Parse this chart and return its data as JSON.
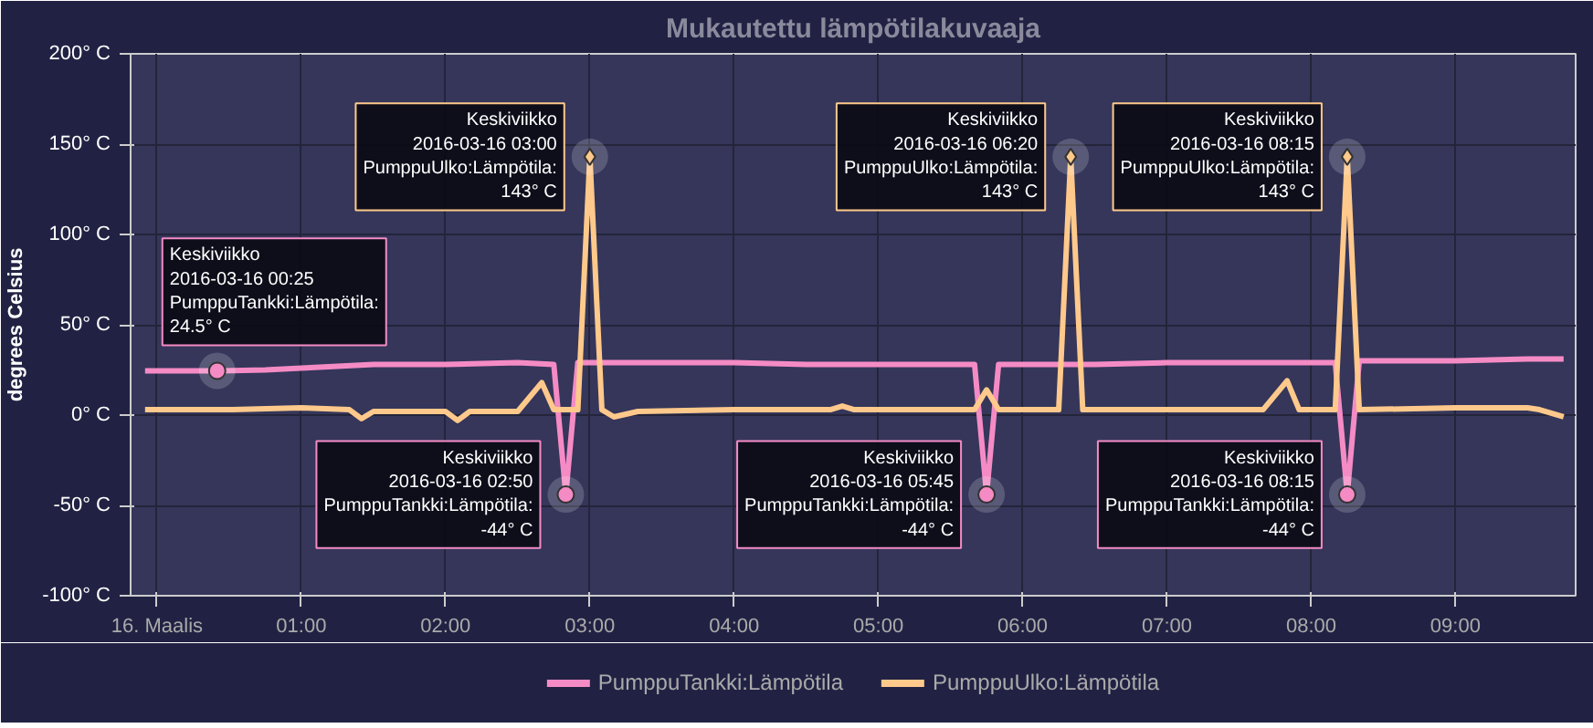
{
  "chart_data": {
    "type": "line",
    "title": "Mukautettu lämpötilakuvaaja",
    "ylabel": "degrees Celsius",
    "xlim": [
      "2016-03-15T23:49",
      "2016-03-16T09:50"
    ],
    "ylim": [
      -100,
      200
    ],
    "xticks": [
      {
        "value": "2016-03-16T00:00",
        "label": "16. Maalis"
      },
      {
        "value": "2016-03-16T01:00",
        "label": "01:00"
      },
      {
        "value": "2016-03-16T02:00",
        "label": "02:00"
      },
      {
        "value": "2016-03-16T03:00",
        "label": "03:00"
      },
      {
        "value": "2016-03-16T04:00",
        "label": "04:00"
      },
      {
        "value": "2016-03-16T05:00",
        "label": "05:00"
      },
      {
        "value": "2016-03-16T06:00",
        "label": "06:00"
      },
      {
        "value": "2016-03-16T07:00",
        "label": "07:00"
      },
      {
        "value": "2016-03-16T08:00",
        "label": "08:00"
      },
      {
        "value": "2016-03-16T09:00",
        "label": "09:00"
      }
    ],
    "yticks": [
      {
        "value": -100,
        "label": "-100° C"
      },
      {
        "value": -50,
        "label": "-50° C"
      },
      {
        "value": 0,
        "label": "0° C"
      },
      {
        "value": 50,
        "label": "50° C"
      },
      {
        "value": 100,
        "label": "100° C"
      },
      {
        "value": 150,
        "label": "150° C"
      },
      {
        "value": 200,
        "label": "200° C"
      }
    ],
    "grid": true,
    "legend": "bottom",
    "line_style": "solid",
    "series": [
      {
        "name": "PumppuTankki:Lämpötila",
        "color": "#f58bc5",
        "x": [
          "2016-03-15T23:55",
          "2016-03-16T00:25",
          "2016-03-16T00:45",
          "2016-03-16T01:00",
          "2016-03-16T01:30",
          "2016-03-16T02:00",
          "2016-03-16T02:30",
          "2016-03-16T02:45",
          "2016-03-16T02:50",
          "2016-03-16T02:55",
          "2016-03-16T03:30",
          "2016-03-16T04:00",
          "2016-03-16T04:30",
          "2016-03-16T05:00",
          "2016-03-16T05:30",
          "2016-03-16T05:40",
          "2016-03-16T05:45",
          "2016-03-16T05:50",
          "2016-03-16T06:30",
          "2016-03-16T07:00",
          "2016-03-16T07:30",
          "2016-03-16T08:00",
          "2016-03-16T08:10",
          "2016-03-16T08:15",
          "2016-03-16T08:20",
          "2016-03-16T09:00",
          "2016-03-16T09:30",
          "2016-03-16T09:45"
        ],
        "values": [
          24.5,
          24.5,
          25,
          26,
          28,
          28,
          29,
          28,
          -44,
          29,
          29,
          29,
          28,
          28,
          28,
          28,
          -44,
          28,
          28,
          29,
          29,
          29,
          29,
          -44,
          30,
          30,
          31,
          31
        ]
      },
      {
        "name": "PumppuUlko:Lämpötila",
        "color": "#ffc98b",
        "x": [
          "2016-03-15T23:55",
          "2016-03-16T00:30",
          "2016-03-16T01:00",
          "2016-03-16T01:20",
          "2016-03-16T01:25",
          "2016-03-16T01:30",
          "2016-03-16T02:00",
          "2016-03-16T02:05",
          "2016-03-16T02:10",
          "2016-03-16T02:30",
          "2016-03-16T02:40",
          "2016-03-16T02:45",
          "2016-03-16T02:55",
          "2016-03-16T03:00",
          "2016-03-16T03:05",
          "2016-03-16T03:10",
          "2016-03-16T03:20",
          "2016-03-16T04:00",
          "2016-03-16T04:40",
          "2016-03-16T04:45",
          "2016-03-16T04:50",
          "2016-03-16T05:30",
          "2016-03-16T05:40",
          "2016-03-16T05:45",
          "2016-03-16T05:50",
          "2016-03-16T06:15",
          "2016-03-16T06:20",
          "2016-03-16T06:25",
          "2016-03-16T07:00",
          "2016-03-16T07:40",
          "2016-03-16T07:50",
          "2016-03-16T07:55",
          "2016-03-16T08:10",
          "2016-03-16T08:15",
          "2016-03-16T08:20",
          "2016-03-16T09:00",
          "2016-03-16T09:30",
          "2016-03-16T09:35",
          "2016-03-16T09:45"
        ],
        "values": [
          3,
          3,
          4,
          3,
          -2,
          2,
          2,
          -3,
          2,
          2,
          18,
          3,
          3,
          143,
          3,
          -1,
          2,
          3,
          3,
          5,
          3,
          3,
          3,
          14,
          3,
          3,
          143,
          3,
          3,
          3,
          19,
          3,
          3,
          143,
          3,
          4,
          4,
          3,
          -1
        ]
      }
    ],
    "annotations": [
      {
        "text": "Keskiviikko\n2016-03-16 00:25\nPumppuTankki:Lämpötila: 24.5° C",
        "x": "2016-03-16T00:25",
        "y": 24.5
      },
      {
        "text": "Keskiviikko\n2016-03-16 03:00\nPumppuUlko:Lämpötila: 143° C",
        "x": "2016-03-16T03:00",
        "y": 143
      },
      {
        "text": "Keskiviikko\n2016-03-16 06:20\nPumppuUlko:Lämpötila: 143° C",
        "x": "2016-03-16T06:20",
        "y": 143
      },
      {
        "text": "Keskiviikko\n2016-03-16 08:15\nPumppuUlko:Lämpötila: 143° C",
        "x": "2016-03-16T08:15",
        "y": 143
      },
      {
        "text": "Keskiviikko\n2016-03-16 02:50\nPumppuTankki:Lämpötila: -44° C",
        "x": "2016-03-16T02:50",
        "y": -44
      },
      {
        "text": "Keskiviikko\n2016-03-16 05:45\nPumppuTankki:Lämpötila: -44° C",
        "x": "2016-03-16T05:45",
        "y": -44
      },
      {
        "text": "Keskiviikko\n2016-03-16 08:15\nPumppuTankki:Lämpötila: -44° C",
        "x": "2016-03-16T08:15",
        "y": -44
      }
    ]
  }
}
